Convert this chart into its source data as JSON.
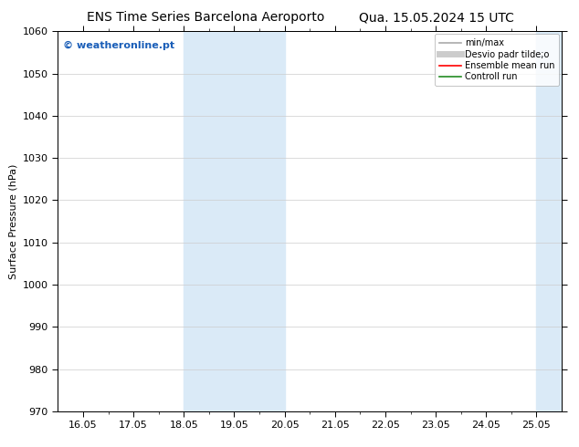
{
  "title_left": "ENS Time Series Barcelona Aeroporto",
  "title_right": "Qua. 15.05.2024 15 UTC",
  "ylabel": "Surface Pressure (hPa)",
  "ylim": [
    970,
    1060
  ],
  "yticks": [
    970,
    980,
    990,
    1000,
    1010,
    1020,
    1030,
    1040,
    1050,
    1060
  ],
  "xtick_labels": [
    "16.05",
    "17.05",
    "18.05",
    "19.05",
    "20.05",
    "21.05",
    "22.05",
    "23.05",
    "24.05",
    "25.05"
  ],
  "shaded_regions": [
    {
      "xmin": 2,
      "xmax": 4
    },
    {
      "xmin": 9,
      "xmax": 9.5
    }
  ],
  "shade_color": "#daeaf7",
  "watermark": "© weatheronline.pt",
  "watermark_color": "#1a5eb8",
  "legend_items": [
    {
      "label": "min/max",
      "color": "#aaaaaa",
      "lw": 1.2,
      "style": "solid"
    },
    {
      "label": "Desvio padr tilde;o",
      "color": "#cccccc",
      "lw": 5,
      "style": "solid"
    },
    {
      "label": "Ensemble mean run",
      "color": "#ff0000",
      "lw": 1.2,
      "style": "solid"
    },
    {
      "label": "Controll run",
      "color": "#228B22",
      "lw": 1.2,
      "style": "solid"
    }
  ],
  "bg_color": "#ffffff",
  "grid_color": "#cccccc",
  "font_size": 8,
  "title_font_size": 10
}
